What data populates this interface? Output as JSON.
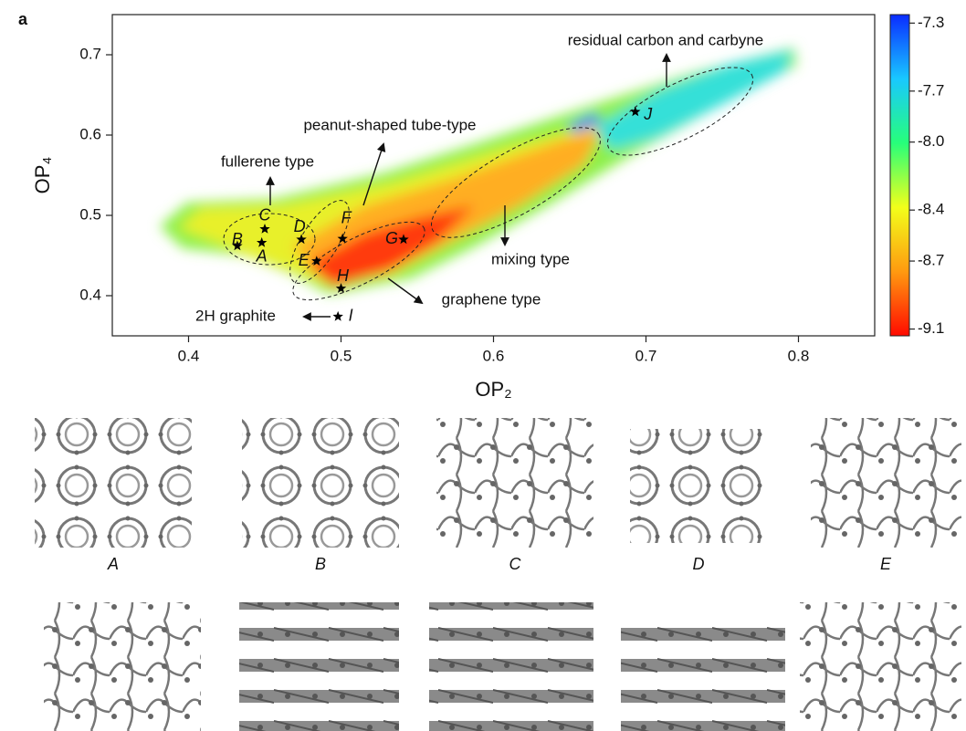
{
  "panel_label": "a",
  "chart_data": {
    "type": "scatter",
    "x_label": "OP₂",
    "y_label": "OP₄",
    "xlim": [
      0.35,
      0.85
    ],
    "xticks": [
      0.4,
      0.5,
      0.6,
      0.7,
      0.8
    ],
    "ylim": [
      0.35,
      0.75
    ],
    "yticks": [
      0.4,
      0.5,
      0.6,
      0.7
    ],
    "series": [
      {
        "color": "#000000",
        "labels": [
          "A",
          "B",
          "C",
          "D",
          "E",
          "F",
          "G",
          "H",
          "I",
          "J"
        ],
        "x": [
          0.448,
          0.432,
          0.45,
          0.474,
          0.484,
          0.501,
          0.541,
          0.5,
          0.498,
          0.693
        ],
        "values": [
          0.466,
          0.462,
          0.483,
          0.47,
          0.443,
          0.471,
          0.47,
          0.409,
          0.374,
          0.629
        ]
      }
    ],
    "annotations": [
      "residual carbon and carbyne",
      "peanut-shaped tube-type",
      "fullerene type",
      "mixing type",
      "graphene type",
      "2H graphite"
    ],
    "colorbar": {
      "lim": [
        -7.25,
        -9.14
      ],
      "ticks": [
        -7.3,
        -7.7,
        {
          "value": -8.0,
          "label": "-8.0"
        },
        -8.4,
        -8.7,
        -9.1
      ],
      "colors": [
        "#0a2cff",
        "#19c8ff",
        "#27ff7a",
        "#f2ff1a",
        "#ff9a10",
        "#ff0a00"
      ]
    }
  },
  "structures": {
    "labels": [
      "A",
      "B",
      "C",
      "D",
      "E"
    ]
  }
}
